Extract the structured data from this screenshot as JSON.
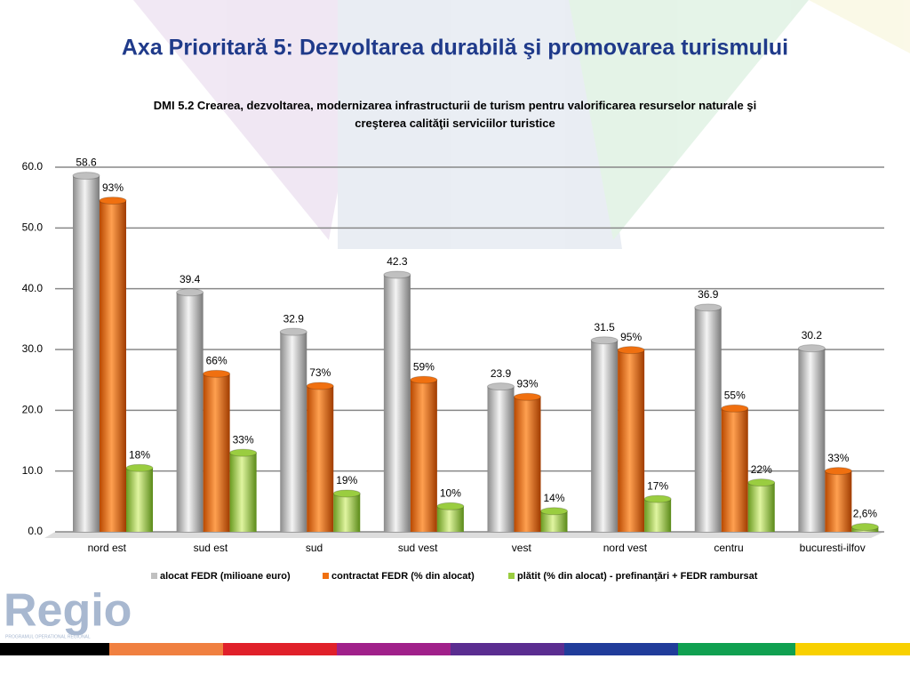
{
  "header": {
    "title": "Axa Prioritară  5: Dezvoltarea durabilă şi promovarea turismului"
  },
  "chart_data": {
    "type": "bar",
    "title": "DMI 5.2 Crearea, dezvoltarea, modernizarea infrastructurii de turism pentru valorificarea resurselor naturale şi creşterea calităţii serviciilor turistice",
    "categories": [
      "nord est",
      "sud est",
      "sud",
      "sud vest",
      "vest",
      "nord vest",
      "centru",
      "bucuresti-ilfov"
    ],
    "series": [
      {
        "name": "alocat FEDR (milioane euro)",
        "color": "#c0c0c0",
        "values": [
          58.6,
          39.4,
          32.9,
          42.3,
          23.9,
          31.5,
          36.9,
          30.2
        ]
      },
      {
        "name": "contractat FEDR (% din alocat)",
        "color": "#f07010",
        "values": [
          54.5,
          26.0,
          24.0,
          25.0,
          22.2,
          29.9,
          20.3,
          10.0
        ],
        "value_labels": [
          "93%",
          "66%",
          "73%",
          "59%",
          "93%",
          "95%",
          "55%",
          "33%"
        ]
      },
      {
        "name": "plătit (% din alocat) - prefinanţări + FEDR rambursat",
        "color": "#9acd40",
        "values": [
          10.5,
          13.0,
          6.3,
          4.2,
          3.4,
          5.4,
          8.1,
          0.8
        ],
        "value_labels": [
          "18%",
          "33%",
          "19%",
          "10%",
          "14%",
          "17%",
          "22%",
          "2,6%"
        ]
      }
    ],
    "ylim": [
      0,
      60
    ],
    "yticks": [
      {
        "value": 0,
        "label": "0.0"
      },
      {
        "value": 10,
        "label": "10.0"
      },
      {
        "value": 20,
        "label": "20.0"
      },
      {
        "value": 30,
        "label": "30.0"
      },
      {
        "value": 40,
        "label": "40.0"
      },
      {
        "value": 50,
        "label": "50.0"
      },
      {
        "value": 60,
        "label": "60.0"
      }
    ],
    "grid": true
  },
  "footer": {
    "logo": "Regio",
    "logo_subtitle": "PROGRAMUL OPERATIONAL REGIONAL"
  }
}
